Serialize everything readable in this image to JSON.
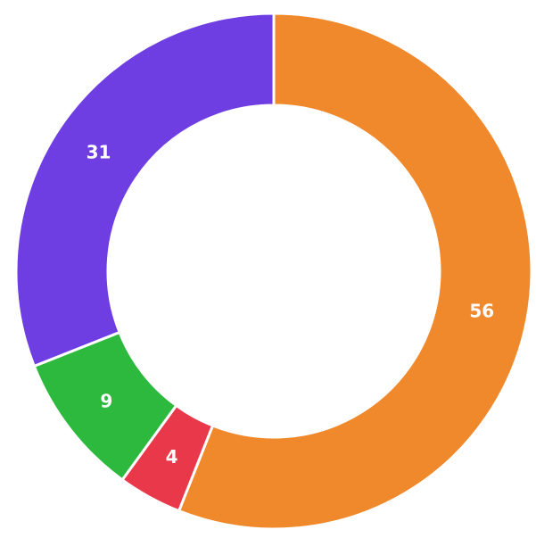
{
  "chart_data": {
    "type": "pie",
    "variant": "donut",
    "start_angle": "top",
    "direction": "clockwise",
    "slices": [
      {
        "value": 56,
        "label": "56",
        "color": "#F0892C"
      },
      {
        "value": 4,
        "label": "4",
        "color": "#E8384A"
      },
      {
        "value": 9,
        "label": "9",
        "color": "#2DB93E"
      },
      {
        "value": 31,
        "label": "31",
        "color": "#6E3EE2"
      }
    ],
    "legend": "none"
  }
}
